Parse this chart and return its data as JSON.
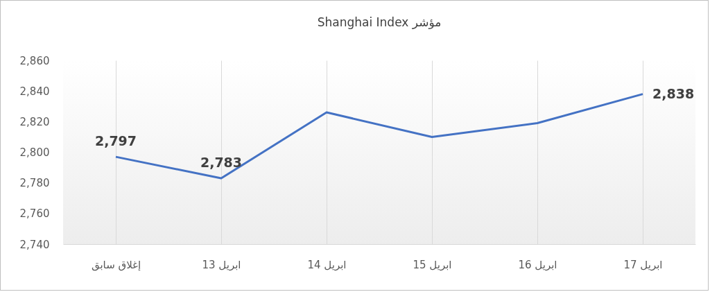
{
  "chart_data": {
    "type": "line",
    "title": "Shanghai Index مؤشر",
    "categories": [
      "إغلاق سابق",
      "13 ابريل",
      "14 ابريل",
      "15 ابريل",
      "16 ابريل",
      "17 ابريل"
    ],
    "series": [
      {
        "color": "#4472c4",
        "values": [
          2797,
          2783,
          2826,
          2810,
          2819,
          2838
        ],
        "value_labels": [
          "2,797",
          "2,783",
          null,
          null,
          null,
          "2,838"
        ]
      }
    ],
    "ylim": [
      2740,
      2860
    ],
    "yticks": [
      {
        "value": 2740,
        "label": "2,740"
      },
      {
        "value": 2760,
        "label": "2,760"
      },
      {
        "value": 2780,
        "label": "2,780"
      },
      {
        "value": 2800,
        "label": "2,800"
      },
      {
        "value": 2820,
        "label": "2,820"
      },
      {
        "value": 2840,
        "label": "2,840"
      },
      {
        "value": 2860,
        "label": "2,860"
      }
    ],
    "grid": "x",
    "marker": "none",
    "line_style": "solid"
  }
}
